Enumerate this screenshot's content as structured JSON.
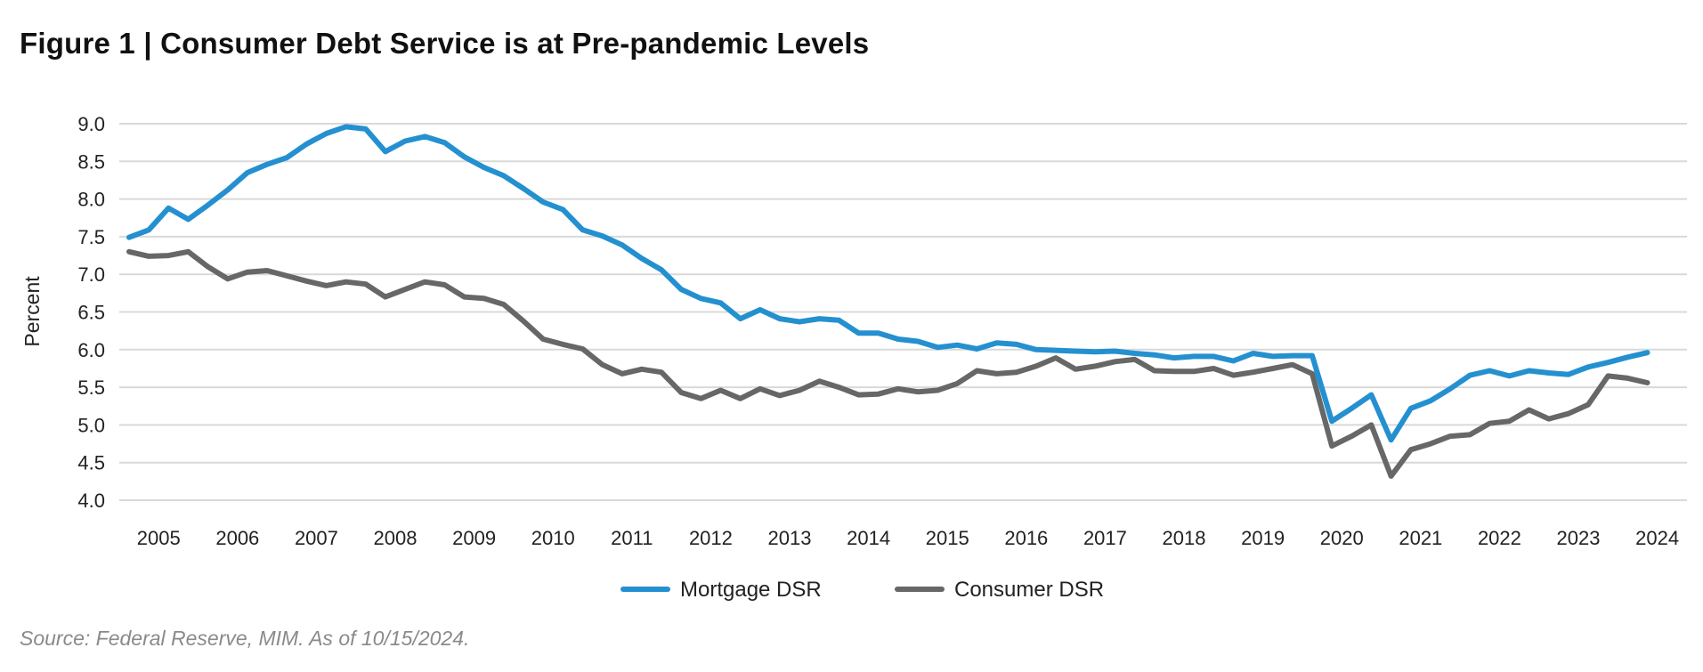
{
  "title": "Figure 1  |  Consumer Debt Service is at Pre-pandemic Levels",
  "source": "Source: Federal Reserve, MIM. As of 10/15/2024.",
  "chart_data": {
    "type": "line",
    "title": "Figure 1  |  Consumer Debt Service is at Pre-pandemic Levels",
    "xlabel": "",
    "ylabel": "Percent",
    "ylim": [
      4.0,
      9.0
    ],
    "yticks": [
      "4.0",
      "4.5",
      "5.0",
      "5.5",
      "6.0",
      "6.5",
      "7.0",
      "7.5",
      "8.0",
      "8.5",
      "9.0"
    ],
    "xtick_labels": [
      "2005",
      "2006",
      "2007",
      "2008",
      "2009",
      "2010",
      "2011",
      "2012",
      "2013",
      "2014",
      "2015",
      "2016",
      "2017",
      "2018",
      "2019",
      "2020",
      "2021",
      "2022",
      "2023",
      "2024"
    ],
    "grid": "horizontal",
    "legend_position": "bottom",
    "x": [
      "2005Q1",
      "2005Q2",
      "2005Q3",
      "2005Q4",
      "2006Q1",
      "2006Q2",
      "2006Q3",
      "2006Q4",
      "2007Q1",
      "2007Q2",
      "2007Q3",
      "2007Q4",
      "2008Q1",
      "2008Q2",
      "2008Q3",
      "2008Q4",
      "2009Q1",
      "2009Q2",
      "2009Q3",
      "2009Q4",
      "2010Q1",
      "2010Q2",
      "2010Q3",
      "2010Q4",
      "2011Q1",
      "2011Q2",
      "2011Q3",
      "2011Q4",
      "2012Q1",
      "2012Q2",
      "2012Q3",
      "2012Q4",
      "2013Q1",
      "2013Q2",
      "2013Q3",
      "2013Q4",
      "2014Q1",
      "2014Q2",
      "2014Q3",
      "2014Q4",
      "2015Q1",
      "2015Q2",
      "2015Q3",
      "2015Q4",
      "2016Q1",
      "2016Q2",
      "2016Q3",
      "2016Q4",
      "2017Q1",
      "2017Q2",
      "2017Q3",
      "2017Q4",
      "2018Q1",
      "2018Q2",
      "2018Q3",
      "2018Q4",
      "2019Q1",
      "2019Q2",
      "2019Q3",
      "2019Q4",
      "2020Q1",
      "2020Q2",
      "2020Q3",
      "2020Q4",
      "2021Q1",
      "2021Q2",
      "2021Q3",
      "2021Q4",
      "2022Q1",
      "2022Q2",
      "2022Q3",
      "2022Q4",
      "2023Q1",
      "2023Q2",
      "2023Q3",
      "2023Q4",
      "2024Q1",
      "2024Q2"
    ],
    "series": [
      {
        "name": "Mortgage DSR",
        "color": "#2490d0",
        "values": [
          7.49,
          7.59,
          7.88,
          7.73,
          7.92,
          8.12,
          8.35,
          8.46,
          8.55,
          8.73,
          8.87,
          8.96,
          8.93,
          8.63,
          8.77,
          8.83,
          8.75,
          8.56,
          8.42,
          8.31,
          8.14,
          7.96,
          7.86,
          7.59,
          7.51,
          7.39,
          7.21,
          7.06,
          6.8,
          6.68,
          6.62,
          6.41,
          6.53,
          6.41,
          6.37,
          6.41,
          6.39,
          6.22,
          6.22,
          6.14,
          6.11,
          6.03,
          6.06,
          6.01,
          6.09,
          6.07,
          6.0,
          5.99,
          5.98,
          5.97,
          5.98,
          5.95,
          5.93,
          5.89,
          5.91,
          5.91,
          5.85,
          5.95,
          5.91,
          5.92,
          5.92,
          5.05,
          5.22,
          5.4,
          4.8,
          5.22,
          5.32,
          5.48,
          5.66,
          5.72,
          5.65,
          5.72,
          5.69,
          5.67,
          5.77,
          5.83,
          5.9,
          5.96
        ]
      },
      {
        "name": "Consumer DSR",
        "color": "#666766",
        "values": [
          7.3,
          7.24,
          7.25,
          7.3,
          7.1,
          6.94,
          7.03,
          7.05,
          6.98,
          6.91,
          6.85,
          6.9,
          6.87,
          6.7,
          6.8,
          6.9,
          6.86,
          6.7,
          6.68,
          6.6,
          6.38,
          6.14,
          6.07,
          6.01,
          5.8,
          5.68,
          5.74,
          5.7,
          5.43,
          5.35,
          5.46,
          5.35,
          5.48,
          5.39,
          5.46,
          5.58,
          5.5,
          5.4,
          5.41,
          5.48,
          5.44,
          5.46,
          5.55,
          5.72,
          5.68,
          5.7,
          5.78,
          5.89,
          5.74,
          5.78,
          5.84,
          5.87,
          5.72,
          5.71,
          5.71,
          5.75,
          5.66,
          5.7,
          5.75,
          5.8,
          5.68,
          4.72,
          4.85,
          5.0,
          4.32,
          4.67,
          4.75,
          4.85,
          4.87,
          5.02,
          5.05,
          5.2,
          5.08,
          5.15,
          5.27,
          5.65,
          5.62,
          5.56
        ]
      }
    ]
  }
}
